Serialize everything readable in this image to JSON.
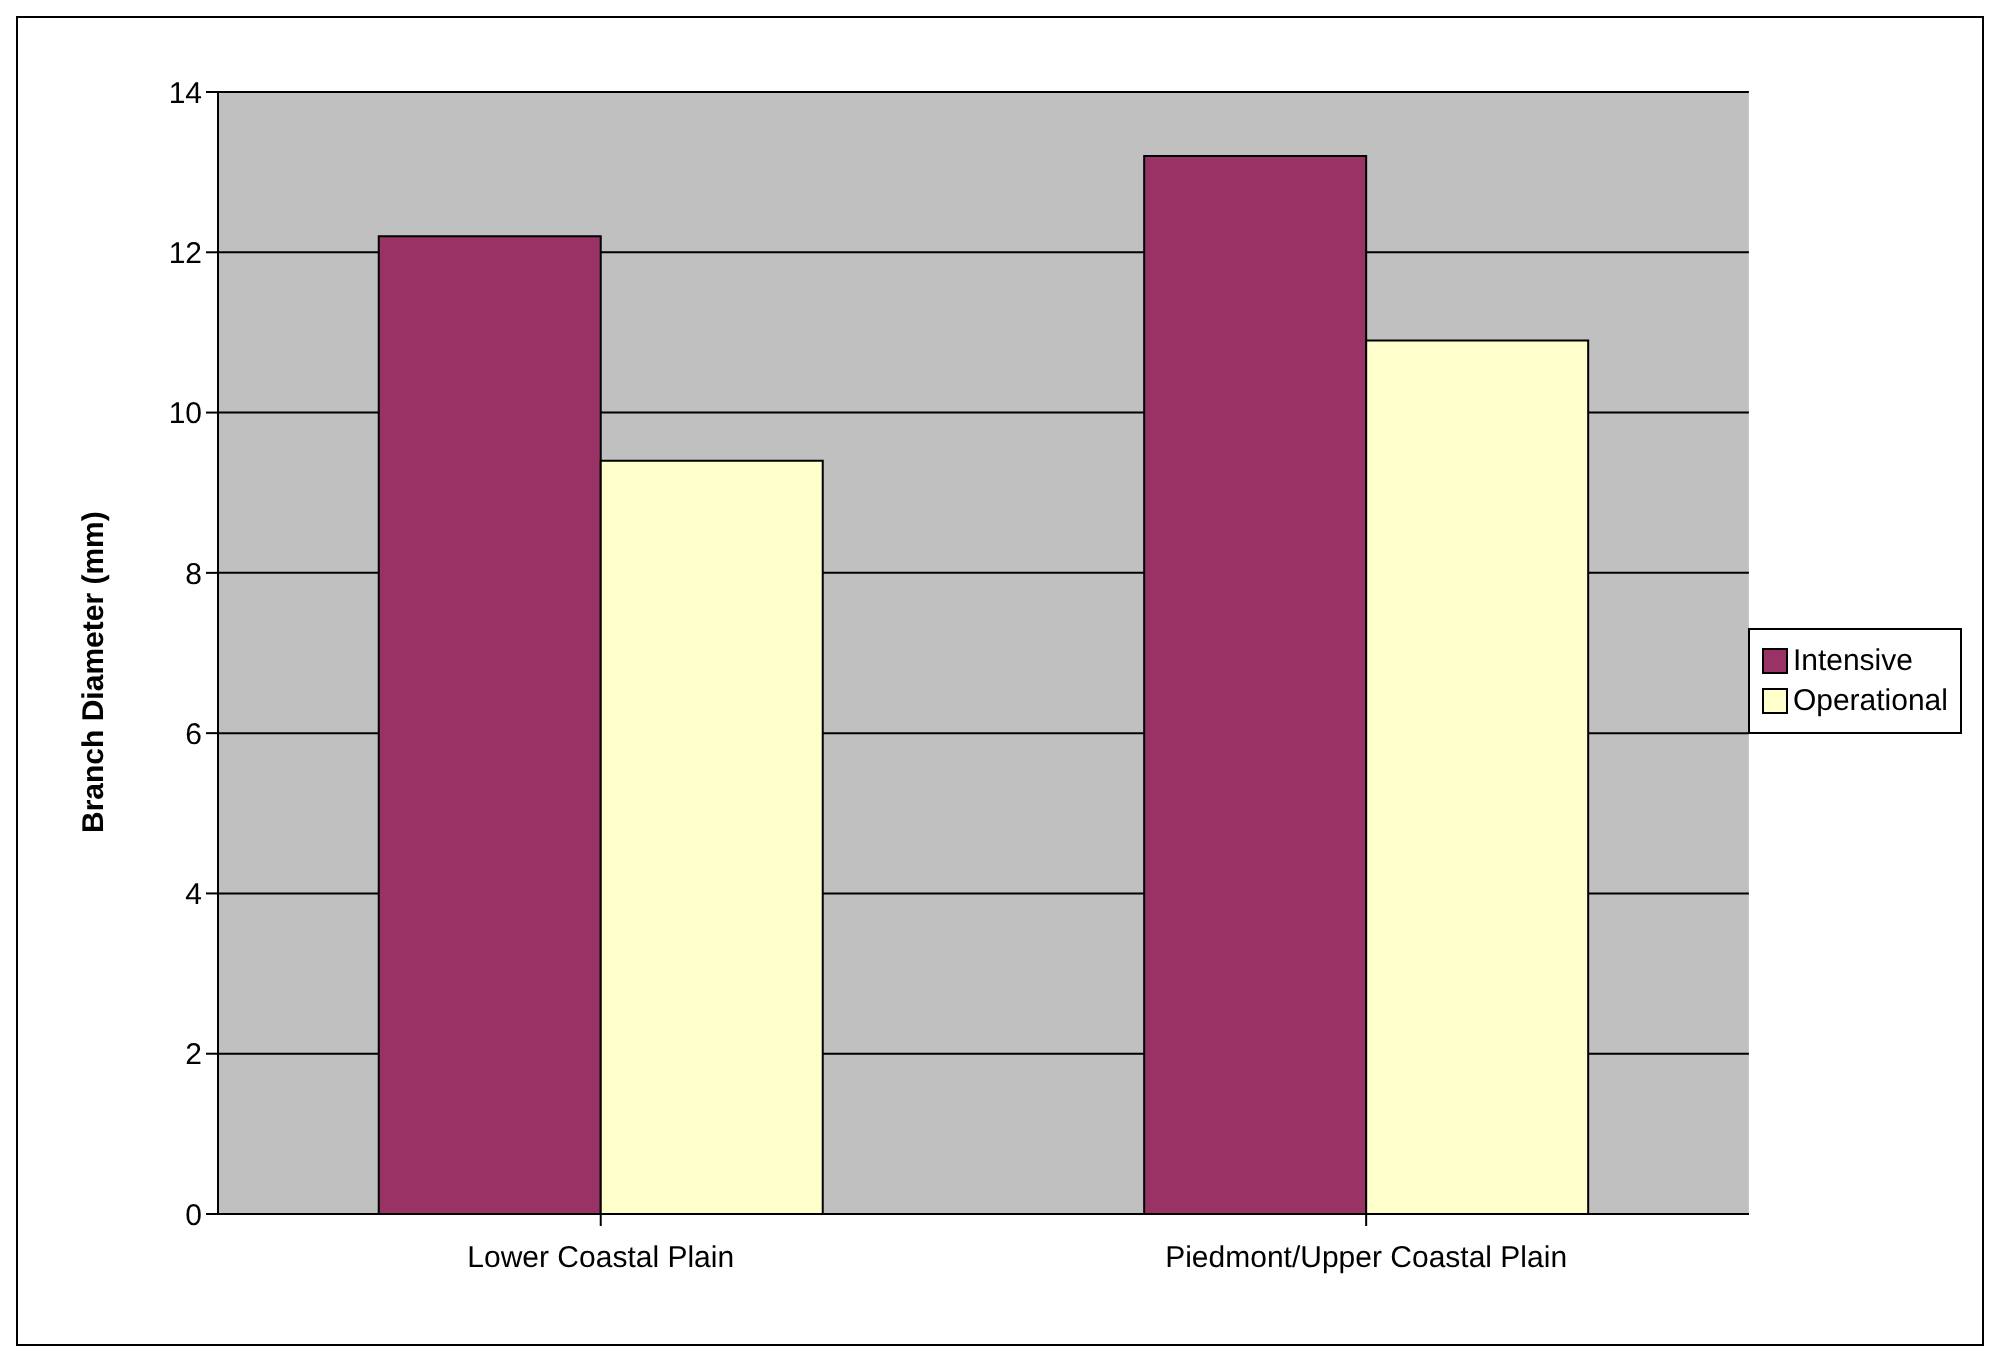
{
  "chart_data": {
    "type": "bar",
    "ylabel": "Branch Diameter (mm)",
    "categories": [
      "Lower Coastal Plain",
      "Piedmont/Upper Coastal Plain"
    ],
    "series": [
      {
        "name": "Intensive",
        "color": "#993366",
        "values": [
          12.2,
          13.2
        ]
      },
      {
        "name": "Operational",
        "color": "#ffffcc",
        "values": [
          9.4,
          10.9
        ]
      }
    ],
    "ylim": [
      0,
      14
    ],
    "yticks": [
      0,
      2,
      4,
      6,
      8,
      10,
      12,
      14
    ],
    "grid": "y",
    "legend": "right"
  }
}
